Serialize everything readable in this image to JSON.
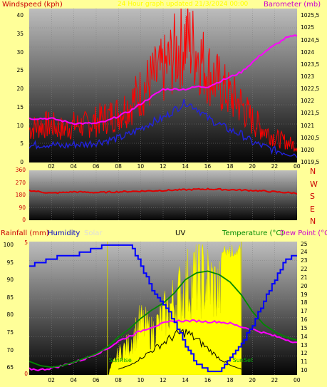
{
  "colors": {
    "background": "#ffff99",
    "windspeed": "#ff0000",
    "gust": "#ff0000",
    "avg": "#2222dd",
    "barometer": "#ff00ff",
    "wind_dir": "#dd0000",
    "humidity": "#0000ff",
    "temperature": "#008800",
    "dew_point": "#ff00ff",
    "solar": "#ffff00",
    "uv": "#000000",
    "red_axis": "#cc0000",
    "green_axis": "#008800"
  },
  "top_panel": {
    "title_left": "Windspeed (kph)",
    "title_center": "24 Hour graph updated 21/3/2024 00:00",
    "title_right": "Barometer (mb)",
    "y_left_ticks": [
      "40",
      "35",
      "30",
      "25",
      "20",
      "15",
      "10",
      "5",
      "0"
    ],
    "y_right_ticks": [
      "1025,5",
      "1025",
      "1024,5",
      "1024",
      "1023,5",
      "1023",
      "1022,5",
      "1022",
      "1021,5",
      "1021",
      "1020,5",
      "1020",
      "1019,5"
    ],
    "x_ticks": [
      "02",
      "04",
      "06",
      "08",
      "10",
      "12",
      "14",
      "16",
      "18",
      "20",
      "22",
      "00"
    ]
  },
  "mid_panel": {
    "y_ticks": [
      "360",
      "270",
      "180",
      "90",
      "0"
    ],
    "compass": [
      "N",
      "W",
      "S",
      "E",
      "N"
    ]
  },
  "bottom_panel": {
    "rainfall_label": "Rainfall (mm)",
    "humidity_label": "Humidity",
    "solar_label": "Solar",
    "uv_label": "UV",
    "temperature_label": "Temperature (°C)",
    "dewpoint_label": "Dew Point (°C)",
    "sunrise_label": "SunRise",
    "sunset_label": "SunSet",
    "y_left_ticks": [
      "100",
      "95",
      "90",
      "85",
      "80",
      "75",
      "70",
      "65"
    ],
    "y_rain_ticks": [
      "5",
      "0"
    ],
    "y_right_ticks": [
      "25",
      "24",
      "23",
      "22",
      "21",
      "20",
      "19",
      "18",
      "17",
      "16",
      "15",
      "14",
      "13",
      "12",
      "11",
      "10"
    ],
    "x_ticks": [
      "02",
      "04",
      "06",
      "08",
      "10",
      "12",
      "14",
      "16",
      "18",
      "20",
      "22",
      "00"
    ],
    "x_tick_marker": "20"
  },
  "chart_data": [
    {
      "type": "line",
      "x_range_hours": [
        0,
        24
      ],
      "series": [
        {
          "name": "Windspeed (kph)",
          "x": [
            0,
            1,
            2,
            3,
            4,
            5,
            6,
            7,
            8,
            9,
            10,
            11,
            12,
            13,
            14,
            15,
            16,
            17,
            18,
            19,
            20,
            21,
            22,
            23,
            24
          ],
          "values": [
            8,
            9,
            9,
            8,
            9,
            9,
            10,
            11,
            12,
            14,
            17,
            20,
            22,
            26,
            30,
            27,
            22,
            19,
            16,
            14,
            10,
            8,
            6,
            5,
            4
          ]
        },
        {
          "name": "Barometer (mb)",
          "x": [
            0,
            1,
            2,
            3,
            4,
            5,
            6,
            7,
            8,
            9,
            10,
            11,
            12,
            13,
            14,
            15,
            16,
            17,
            18,
            19,
            20,
            21,
            22,
            23,
            24
          ],
          "values": [
            1021.3,
            1021.3,
            1021.3,
            1021.2,
            1021.1,
            1021.1,
            1021.1,
            1021.2,
            1021.4,
            1021.6,
            1021.9,
            1022.2,
            1022.5,
            1022.5,
            1022.5,
            1022.6,
            1022.6,
            1022.8,
            1023.0,
            1023.2,
            1023.6,
            1024.0,
            1024.3,
            1024.6,
            1024.7
          ],
          "axis": "right"
        }
      ],
      "ylim_left": [
        0,
        42
      ],
      "ylim_right": [
        1019.5,
        1025.8
      ],
      "grid": true
    },
    {
      "type": "line",
      "x_range_hours": [
        0,
        24
      ],
      "series": [
        {
          "x": [
            0,
            2,
            4,
            6,
            8,
            10,
            12,
            14,
            16,
            18,
            20,
            22,
            24
          ],
          "values": [
            215,
            195,
            205,
            200,
            205,
            210,
            215,
            220,
            225,
            220,
            215,
            205,
            195
          ]
        }
      ],
      "ylim": [
        0,
        360
      ],
      "grid": true
    },
    {
      "type": "line",
      "x_range_hours": [
        0,
        24
      ],
      "series": [
        {
          "name": "Humidity",
          "x": [
            0,
            1,
            2,
            3,
            4,
            5,
            6,
            7,
            8,
            9,
            10,
            11,
            12,
            13,
            14,
            15,
            16,
            17,
            18,
            19,
            20,
            21,
            22,
            23,
            24
          ],
          "values": [
            94,
            95,
            96,
            97,
            97,
            98,
            99,
            100,
            100,
            100,
            94,
            87,
            83,
            78,
            71,
            66,
            64,
            64,
            68,
            72,
            77,
            84,
            90,
            96,
            97
          ],
          "axis": "left"
        },
        {
          "name": "Temperature (°C)",
          "x": [
            0,
            1,
            2,
            3,
            4,
            5,
            6,
            7,
            8,
            9,
            10,
            11,
            12,
            13,
            14,
            15,
            16,
            17,
            18,
            19,
            20,
            21,
            22,
            23,
            24
          ],
          "values": [
            11.1,
            10.6,
            10.4,
            10.6,
            11.0,
            11.5,
            12.0,
            12.8,
            14.0,
            15.0,
            16.2,
            17.2,
            18.0,
            19.2,
            20.8,
            21.6,
            21.8,
            21.4,
            20.5,
            19.0,
            17.0,
            15.5,
            14.6,
            14.0,
            13.6
          ],
          "axis": "right"
        },
        {
          "name": "Dew Point (°C)",
          "x": [
            0,
            1,
            2,
            3,
            4,
            5,
            6,
            7,
            8,
            9,
            10,
            11,
            12,
            13,
            14,
            15,
            16,
            17,
            18,
            19,
            20,
            21,
            22,
            23,
            24
          ],
          "values": [
            10.2,
            10.1,
            10.3,
            10.6,
            11.0,
            11.4,
            12.0,
            12.6,
            13.5,
            14.1,
            14.7,
            15.2,
            15.6,
            15.9,
            15.9,
            15.9,
            15.8,
            15.8,
            15.6,
            15.2,
            14.9,
            14.5,
            14.1,
            13.7,
            13.3
          ],
          "axis": "right"
        },
        {
          "name": "UV",
          "x": [
            8,
            9,
            10,
            11,
            12,
            13,
            14,
            15,
            16,
            17,
            18,
            19
          ],
          "values": [
            0,
            0.2,
            0.6,
            1.0,
            1.4,
            1.8,
            2.0,
            1.6,
            1.1,
            0.6,
            0.2,
            0
          ],
          "axis": "uv"
        },
        {
          "name": "Solar",
          "x": [
            7,
            8,
            9,
            10,
            11,
            12,
            13,
            14,
            15,
            16,
            17,
            18,
            19
          ],
          "values": [
            0,
            20,
            30,
            50,
            40,
            55,
            70,
            85,
            95,
            90,
            80,
            85,
            0
          ],
          "axis": "solar"
        }
      ],
      "ylim_left": [
        63,
        101
      ],
      "ylim_right": [
        9.5,
        25.3
      ],
      "grid": true
    }
  ]
}
